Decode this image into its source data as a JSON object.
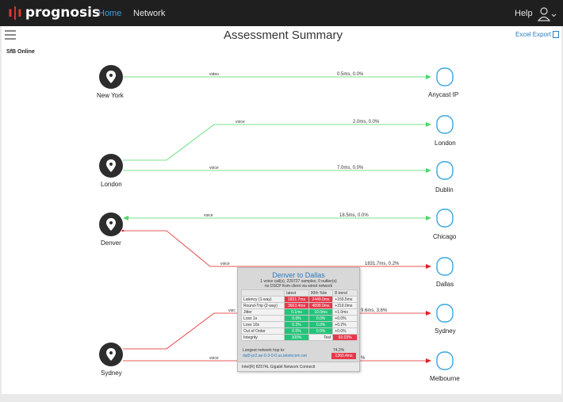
{
  "header": {
    "logo_mark": "ı|ı",
    "logo_text": "prognosis",
    "nav": [
      {
        "label": "Home"
      },
      {
        "label": "Network"
      }
    ],
    "help_label": "Help",
    "user_icon": "user-icon"
  },
  "page": {
    "title": "Assessment Summary",
    "excel_export_label": "Excel Export",
    "section_title": "SfB Online"
  },
  "colors": {
    "ok": "#4cd964",
    "bad": "#e02020",
    "cloud": "#38a7dd",
    "pin": "#2d2d2d"
  },
  "sources": [
    {
      "name": "New York"
    },
    {
      "name": "London"
    },
    {
      "name": "Denver"
    },
    {
      "name": "Sydney"
    }
  ],
  "destinations": [
    {
      "name": "Anycast IP"
    },
    {
      "name": "London"
    },
    {
      "name": "Dublin"
    },
    {
      "name": "Chicago"
    },
    {
      "name": "Dallas"
    },
    {
      "name": "Sydney"
    },
    {
      "name": "Melbourne"
    }
  ],
  "links": [
    {
      "type_label": "video",
      "metric": "0.5ms, 0.0%",
      "status": "ok"
    },
    {
      "type_label": "voice",
      "metric": "2.0ms, 0.0%",
      "status": "ok"
    },
    {
      "type_label": "voice",
      "metric": "7.0ms, 0.0%",
      "status": "ok"
    },
    {
      "type_label": "voice",
      "metric": "18.5ms, 0.0%",
      "status": "ok"
    },
    {
      "type_label": "voice",
      "metric": "1831.7ms, 0.2%",
      "status": "bad"
    },
    {
      "type_label": "voic",
      "metric": "9.6ms, 3.6%",
      "status": "bad"
    },
    {
      "type_label": "voice",
      "metric": "%",
      "status": "bad"
    }
  ],
  "popup": {
    "title": "Denver to Dallas",
    "subtitle_1": "1 voice call(s), 229727 samples, 0 outlier(s)",
    "subtitle_2": "no DSCP from client via wired network",
    "columns": [
      "",
      "latest",
      "90th %ile",
      "8 trend"
    ],
    "rows": [
      {
        "label": "Latency (1-way)",
        "latest": "1831.7ms",
        "p90": "2449.0ms",
        "trend": "+159.5ms",
        "l": "red",
        "p": "red"
      },
      {
        "label": "Round-Trip (2-way)",
        "latest": "3663.4ms",
        "p90": "4898.0ms",
        "trend": "+319.0ms",
        "l": "red",
        "p": "red"
      },
      {
        "label": "Jitter",
        "latest": "0.1ms",
        "p90": "10.0ms",
        "trend": "+1.0ms",
        "l": "green",
        "p": "green"
      },
      {
        "label": "Loss 1s",
        "latest": "0.0%",
        "p90": "0.0%",
        "trend": "+0.0%",
        "l": "green",
        "p": "green"
      },
      {
        "label": "Loss 10s",
        "latest": "0.2%",
        "p90": "0.0%",
        "trend": "+0.2%",
        "l": "green",
        "p": "green"
      },
      {
        "label": "Out of Order",
        "latest": "0.0%",
        "p90": "0.0%",
        "trend": "+0.0%",
        "l": "green",
        "p": "green"
      },
      {
        "label": "Integrity",
        "latest": "100%",
        "p90": "Test",
        "trend": "93.03%",
        "l": "green",
        "p": "plain",
        "t": "red"
      }
    ],
    "hop_label": "Longest network hop to:",
    "hop_host": "dal0-pr2.ae-0-3-0-0.us.telelecom.net",
    "hop_pct": "74.2%",
    "hop_ms": "1360.4ms",
    "footer": "Intel(R) 82574L Gigabit Network Connecti"
  }
}
